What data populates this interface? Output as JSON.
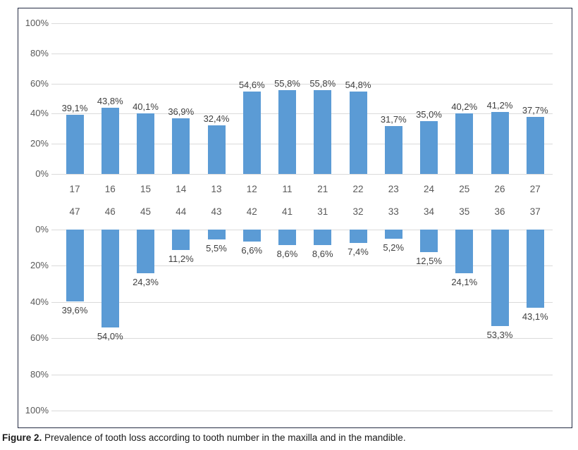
{
  "figure": {
    "caption_label": "Figure 2.",
    "caption_text": " Prevalence of tooth loss according to tooth number in the maxilla and in the mandible."
  },
  "colors": {
    "bar": "#5B9BD5",
    "gridline": "#dadada",
    "box_border": "#242b43",
    "tick_label": "#595959",
    "value_label": "#404040"
  },
  "chart_data": [
    {
      "type": "bar",
      "group": "maxilla",
      "orientation": "up",
      "categories": [
        "17",
        "16",
        "15",
        "14",
        "13",
        "12",
        "11",
        "21",
        "22",
        "23",
        "24",
        "25",
        "26",
        "27"
      ],
      "values": [
        39.1,
        43.8,
        40.1,
        36.9,
        32.4,
        54.6,
        55.8,
        55.8,
        54.8,
        31.7,
        35.0,
        40.2,
        41.2,
        37.7
      ],
      "value_labels": [
        "39,1%",
        "43,8%",
        "40,1%",
        "36,9%",
        "32,4%",
        "54,6%",
        "55,8%",
        "55,8%",
        "54,8%",
        "31,7%",
        "35,0%",
        "40,2%",
        "41,2%",
        "37,7%"
      ],
      "yticks": [
        "100%",
        "80%",
        "60%",
        "40%",
        "20%",
        "0%"
      ],
      "ylim": [
        0,
        100
      ],
      "grid": true,
      "bar_color": "#5B9BD5"
    },
    {
      "type": "bar",
      "group": "mandible",
      "orientation": "down",
      "categories": [
        "47",
        "46",
        "45",
        "44",
        "43",
        "42",
        "41",
        "31",
        "32",
        "33",
        "34",
        "35",
        "36",
        "37"
      ],
      "values": [
        39.6,
        54.0,
        24.3,
        11.2,
        5.5,
        6.6,
        8.6,
        8.6,
        7.4,
        5.2,
        12.5,
        24.1,
        53.3,
        43.1
      ],
      "value_labels": [
        "39,6%",
        "54,0%",
        "24,3%",
        "11,2%",
        "5,5%",
        "6,6%",
        "8,6%",
        "8,6%",
        "7,4%",
        "5,2%",
        "12,5%",
        "24,1%",
        "53,3%",
        "43,1%"
      ],
      "yticks": [
        "0%",
        "20%",
        "40%",
        "60%",
        "80%",
        "100%"
      ],
      "ylim": [
        0,
        100
      ],
      "grid": true,
      "bar_color": "#5B9BD5"
    }
  ]
}
